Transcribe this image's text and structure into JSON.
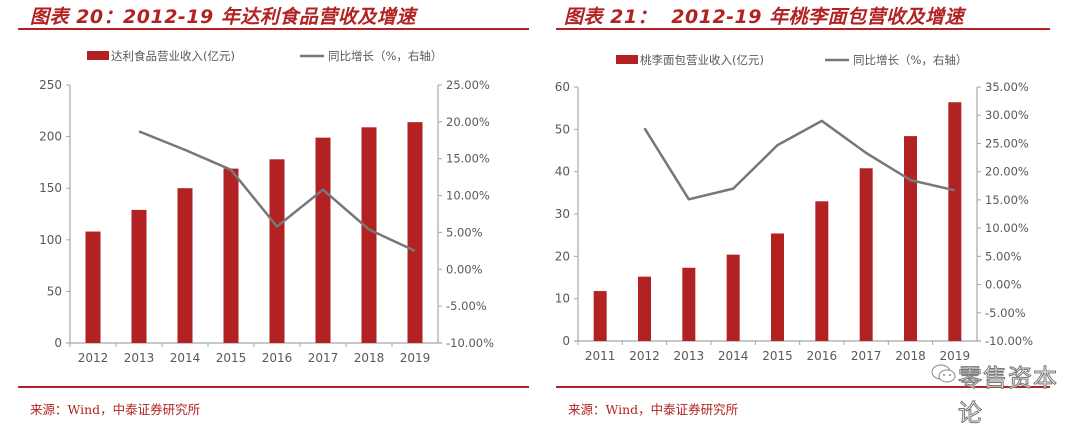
{
  "left": {
    "title": "图表 20：2012-19 年达利食品营收及增速",
    "source": "来源：Wind，中泰证券研究所",
    "legend": {
      "bar": "达利食品营业收入(亿元)",
      "line": "同比增长（%，右轴）"
    },
    "left_ticks": [
      "250",
      "200",
      "150",
      "100",
      "50",
      "0"
    ],
    "right_ticks": [
      "25.00%",
      "20.00%",
      "15.00%",
      "10.00%",
      "5.00%",
      "0.00%",
      "-5.00%",
      "-10.00%"
    ]
  },
  "right": {
    "title": "图表 21：  2012-19 年桃李面包营收及增速",
    "source": "来源：Wind，中泰证券研究所",
    "legend": {
      "bar": "桃李面包营业收入(亿元)",
      "line": "同比增长（%，右轴）"
    },
    "left_ticks": [
      "60",
      "50",
      "40",
      "30",
      "20",
      "10",
      "0"
    ],
    "right_ticks": [
      "35.00%",
      "30.00%",
      "25.00%",
      "20.00%",
      "15.00%",
      "10.00%",
      "5.00%",
      "0.00%",
      "-5.00%",
      "-10.00%"
    ]
  },
  "watermark": "零售资本论",
  "colors": {
    "bar": "#b22222",
    "line": "#777777",
    "accent": "#b22222",
    "axis": "#a6a6a6",
    "tick_text": "#595959"
  },
  "chart_data": [
    {
      "type": "bar",
      "title": "图表 20：2012-19 年达利食品营收及增速",
      "categories": [
        "2012",
        "2013",
        "2014",
        "2015",
        "2016",
        "2017",
        "2018",
        "2019"
      ],
      "series": [
        {
          "name": "达利食品营业收入(亿元)",
          "type": "bar",
          "axis": "left",
          "values": [
            108,
            129,
            150,
            169,
            178,
            199,
            209,
            214
          ]
        },
        {
          "name": "同比增长（%，右轴）",
          "type": "line",
          "axis": "right",
          "values": [
            null,
            18.7,
            16.2,
            13.5,
            5.8,
            10.8,
            5.4,
            2.5
          ]
        }
      ],
      "ylim_left": [
        0,
        250
      ],
      "ylim_right": [
        -10,
        25
      ],
      "xlabel": "",
      "ylabel": "",
      "legend_position": "top",
      "grid": false
    },
    {
      "type": "bar",
      "title": "图表 21：2012-19 年桃李面包营收及增速",
      "categories": [
        "2011",
        "2012",
        "2013",
        "2014",
        "2015",
        "2016",
        "2017",
        "2018",
        "2019"
      ],
      "series": [
        {
          "name": "桃李面包营业收入(亿元)",
          "type": "bar",
          "axis": "left",
          "values": [
            11.8,
            15.2,
            17.3,
            20.4,
            25.4,
            33.0,
            40.8,
            48.4,
            56.4
          ]
        },
        {
          "name": "同比增长（%，右轴）",
          "type": "line",
          "axis": "right",
          "values": [
            null,
            27.7,
            15.1,
            17.0,
            24.7,
            29.0,
            23.3,
            18.5,
            16.7
          ]
        }
      ],
      "ylim_left": [
        0,
        60
      ],
      "ylim_right": [
        -10,
        35
      ],
      "xlabel": "",
      "ylabel": "",
      "legend_position": "top",
      "grid": false
    }
  ]
}
